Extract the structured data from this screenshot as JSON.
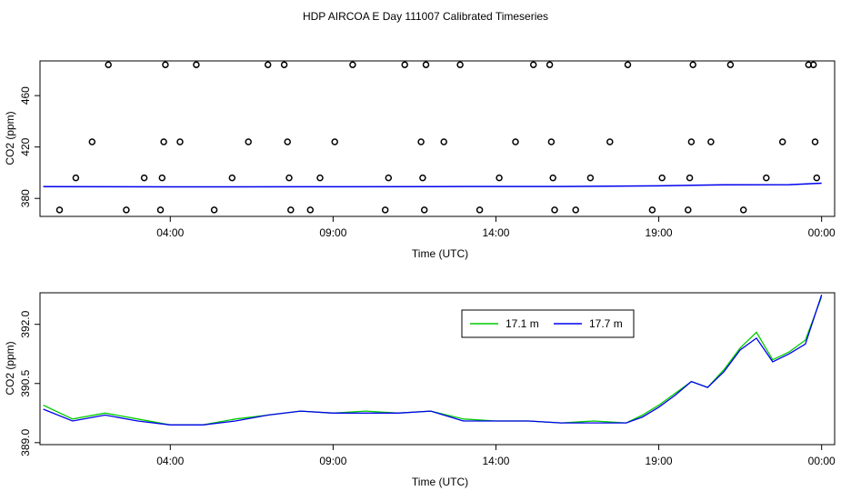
{
  "title": "HDP AIRCOA E  Day 111007  Calibrated Timeseries",
  "colors": {
    "series_17_1": "#00cc00",
    "series_17_7": "#0000ee",
    "axis": "#000000"
  },
  "chart_data": [
    {
      "type": "scatter",
      "xlabel": "Time (UTC)",
      "ylabel": "CO2 (ppm)",
      "x_unit": "hours",
      "xlim": [
        0,
        24.4
      ],
      "ylim": [
        366,
        487
      ],
      "x_ticks": [
        4,
        9,
        14,
        19,
        24
      ],
      "x_tick_labels": [
        "04:00",
        "09:00",
        "14:00",
        "19:00",
        "00:00"
      ],
      "y_ticks": [
        380,
        420,
        460
      ],
      "y_tick_labels": [
        "380",
        "420",
        "460"
      ],
      "level_series": {
        "x": [
          0.1,
          4,
          8,
          12,
          16,
          19,
          21,
          23,
          24
        ],
        "y": [
          389.2,
          389.0,
          389.1,
          389.2,
          389.3,
          389.8,
          390.6,
          390.7,
          391.8
        ]
      },
      "points": {
        "x": [
          0.6,
          1.1,
          1.6,
          2.1,
          2.65,
          3.2,
          3.7,
          3.75,
          3.8,
          3.85,
          4.3,
          4.8,
          5.35,
          5.9,
          6.4,
          7.0,
          7.5,
          7.6,
          7.65,
          7.7,
          8.3,
          8.6,
          9.05,
          9.6,
          10.6,
          10.7,
          11.2,
          11.7,
          11.75,
          11.8,
          11.85,
          12.4,
          12.9,
          13.5,
          14.1,
          14.6,
          15.15,
          15.65,
          15.7,
          15.75,
          15.8,
          16.45,
          16.9,
          17.5,
          18.05,
          18.8,
          19.1,
          19.9,
          19.95,
          20.0,
          20.05,
          20.6,
          21.2,
          21.6,
          22.3,
          22.8,
          23.6,
          23.75,
          23.8,
          23.85
        ]
      },
      "point_y": [
        371,
        396,
        424,
        484,
        371,
        396,
        371,
        396,
        424,
        484,
        424,
        484,
        371,
        396,
        424,
        484,
        484,
        424,
        396,
        371,
        371,
        396,
        424,
        484,
        371,
        396,
        484,
        424,
        396,
        371,
        484,
        424,
        484,
        371,
        396,
        424,
        484,
        484,
        424,
        396,
        371,
        371,
        396,
        424,
        484,
        371,
        396,
        371,
        396,
        424,
        484,
        424,
        484,
        371,
        396,
        424,
        484,
        484,
        424,
        396
      ]
    },
    {
      "type": "line",
      "xlabel": "Time (UTC)",
      "ylabel": "CO2 (ppm)",
      "xlim": [
        0,
        24.4
      ],
      "ylim": [
        388.95,
        392.8
      ],
      "x_ticks": [
        4,
        9,
        14,
        19,
        24
      ],
      "x_tick_labels": [
        "04:00",
        "09:00",
        "14:00",
        "19:00",
        "00:00"
      ],
      "y_ticks": [
        389.0,
        390.5,
        392.0
      ],
      "y_tick_labels": [
        "389.0",
        "390.5",
        "392.0"
      ],
      "legend_position": "top-right",
      "legend_labels": [
        "17.1 m",
        "17.7 m"
      ],
      "series": [
        {
          "name": "17.1 m",
          "color": "#00cc00",
          "x": [
            0.1,
            1,
            2,
            3,
            4,
            5,
            6,
            7,
            8,
            9,
            10,
            11,
            12,
            13,
            14,
            15,
            16,
            17,
            18,
            18.5,
            19,
            19.5,
            20,
            20.5,
            21,
            21.5,
            22,
            22.5,
            23,
            23.5,
            24
          ],
          "y": [
            389.95,
            389.6,
            389.75,
            389.6,
            389.45,
            389.45,
            389.6,
            389.7,
            389.8,
            389.75,
            389.8,
            389.75,
            389.8,
            389.6,
            389.55,
            389.55,
            389.5,
            389.55,
            389.5,
            389.7,
            389.95,
            390.25,
            390.55,
            390.4,
            390.85,
            391.4,
            391.8,
            391.1,
            391.3,
            391.6,
            392.7
          ]
        },
        {
          "name": "17.7 m",
          "color": "#0000ee",
          "x": [
            0.1,
            1,
            2,
            3,
            4,
            5,
            6,
            7,
            8,
            9,
            10,
            11,
            12,
            13,
            14,
            15,
            16,
            17,
            18,
            18.5,
            19,
            19.5,
            20,
            20.5,
            21,
            21.5,
            22,
            22.5,
            23,
            23.5,
            24
          ],
          "y": [
            389.85,
            389.55,
            389.7,
            389.55,
            389.45,
            389.45,
            389.55,
            389.7,
            389.8,
            389.75,
            389.75,
            389.75,
            389.8,
            389.55,
            389.55,
            389.55,
            389.5,
            389.5,
            389.5,
            389.65,
            389.9,
            390.2,
            390.55,
            390.4,
            390.8,
            391.35,
            391.65,
            391.05,
            391.25,
            391.5,
            392.75
          ]
        }
      ]
    }
  ]
}
